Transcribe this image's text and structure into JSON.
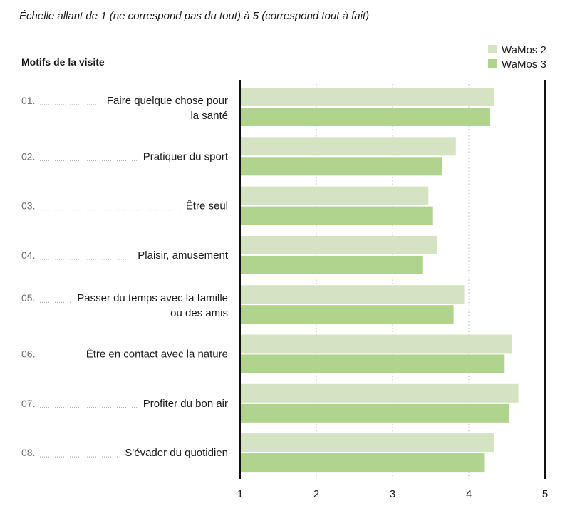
{
  "chart_data": {
    "type": "bar",
    "orientation": "horizontal",
    "subtitle": "Échelle allant de 1 (ne correspond pas du tout) à 5 (correspond tout à fait)",
    "category_title": "Motifs de la visite",
    "categories": [
      {
        "num": "01.",
        "lines": [
          "Faire quelque chose pour",
          "la santé"
        ]
      },
      {
        "num": "02.",
        "lines": [
          "Pratiquer du sport"
        ]
      },
      {
        "num": "03.",
        "lines": [
          "Être seul"
        ]
      },
      {
        "num": "04.",
        "lines": [
          "Plaisir, amusement"
        ]
      },
      {
        "num": "05.",
        "lines": [
          "Passer du temps avec la famille",
          "ou des amis"
        ]
      },
      {
        "num": "06.",
        "lines": [
          "Être en contact avec la nature"
        ]
      },
      {
        "num": "07.",
        "lines": [
          "Profiter du bon air"
        ]
      },
      {
        "num": "08.",
        "lines": [
          "S'évader du quotidien"
        ]
      }
    ],
    "series": [
      {
        "name": "WaMos 2",
        "color": "#d4e4c2",
        "values": [
          4.33,
          3.83,
          3.47,
          3.58,
          3.94,
          4.57,
          4.65,
          4.33
        ]
      },
      {
        "name": "WaMos 3",
        "color": "#b0d38e",
        "values": [
          4.28,
          3.65,
          3.53,
          3.39,
          3.8,
          4.47,
          4.53,
          4.21
        ]
      }
    ],
    "xlim": [
      1,
      5
    ],
    "xticks": [
      "1",
      "2",
      "3",
      "4",
      "5"
    ],
    "legend_position": "top-right",
    "grid": "dotted-vertical"
  }
}
